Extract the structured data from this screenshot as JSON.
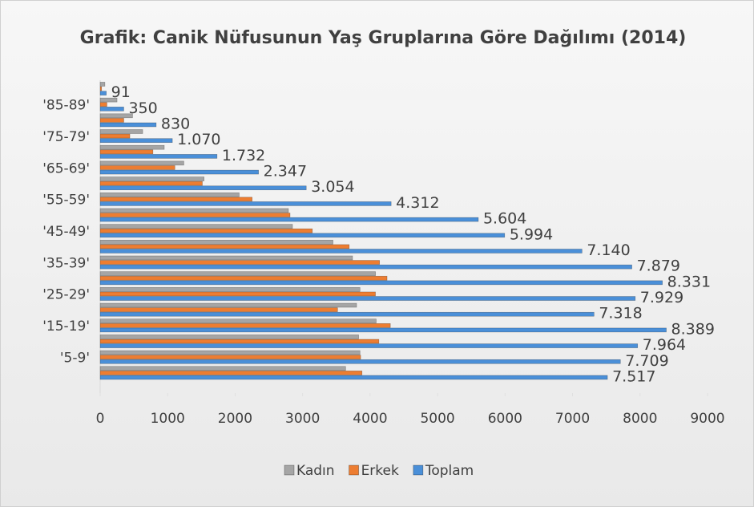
{
  "chart_data": {
    "type": "barh",
    "title": "Grafik: Canik Nüfusunun Yaş Gruplarına Göre Dağılımı (2014)",
    "categories": [
      null,
      "'5-9'",
      null,
      "'15-19'",
      null,
      "'25-29'",
      null,
      "'35-39'",
      null,
      "'45-49'",
      null,
      "'55-59'",
      null,
      "'65-69'",
      null,
      "'75-79'",
      null,
      "'85-89'",
      null
    ],
    "series": [
      {
        "name": "Kadın",
        "color": "#a5a5a5",
        "values": [
          3637,
          3850,
          3830,
          4090,
          3800,
          3850,
          4080,
          3740,
          3450,
          2850,
          2790,
          2060,
          1540,
          1240,
          950,
          630,
          480,
          250,
          70
        ]
      },
      {
        "name": "Erkek",
        "color": "#ed7d31",
        "values": [
          3880,
          3860,
          4130,
          4300,
          3518,
          4079,
          4251,
          4140,
          3690,
          3144,
          2814,
          2252,
          1514,
          1107,
          782,
          440,
          350,
          100,
          21
        ]
      },
      {
        "name": "Toplam",
        "color": "#4a8fd8",
        "values": [
          7517,
          7709,
          7964,
          8389,
          7318,
          7929,
          8331,
          7879,
          7140,
          5994,
          5604,
          4312,
          3054,
          2347,
          1732,
          1070,
          830,
          350,
          91
        ],
        "value_labels": [
          "7.517",
          "7.709",
          "7.964",
          "8.389",
          "7.318",
          "7.929",
          "8.331",
          "7.879",
          "7.140",
          "5.994",
          "5.604",
          "4.312",
          "3.054",
          "2.347",
          "1.732",
          "1.070",
          "830",
          "350",
          "91"
        ]
      }
    ],
    "xlim": [
      0,
      9000
    ],
    "xticks": [
      0,
      1000,
      2000,
      3000,
      4000,
      5000,
      6000,
      7000,
      8000,
      9000
    ],
    "legend": "bottom"
  }
}
